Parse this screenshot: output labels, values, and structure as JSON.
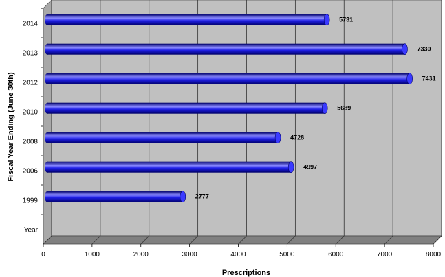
{
  "chart_data": {
    "type": "bar",
    "orientation": "horizontal",
    "style": "3d-cylinder",
    "title": "",
    "xlabel": "Prescriptions",
    "ylabel": "Fiscal Year Ending (June 30th)",
    "categories": [
      "Year",
      "1999",
      "2006",
      "2008",
      "2010",
      "2012",
      "2013",
      "2014"
    ],
    "values": [
      null,
      2777,
      4997,
      4728,
      5689,
      7431,
      7330,
      5731
    ],
    "data_labels": [
      "",
      "2777",
      "4997",
      "4728",
      "5689",
      "7431",
      "7330",
      "5731"
    ],
    "xlim": [
      0,
      8000
    ],
    "xticks": [
      "0",
      "1000",
      "2000",
      "3000",
      "4000",
      "5000",
      "6000",
      "7000",
      "8000"
    ],
    "grid": true,
    "legend": "none",
    "colors": {
      "bar": "#1f1fe6",
      "bar_highlight": "#8a8aff",
      "bar_shadow": "#00006a",
      "plot_back": "#c0c0c0",
      "plot_floor": "#808080",
      "plot_side": "#a8a8a8"
    }
  }
}
